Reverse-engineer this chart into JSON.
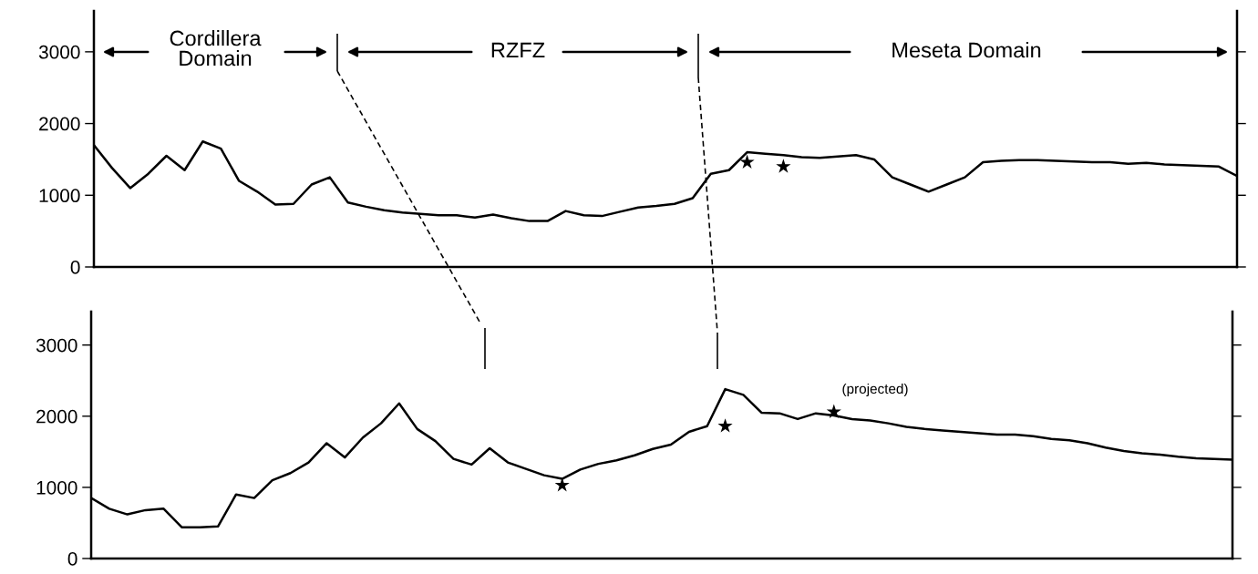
{
  "chart_data": [
    {
      "type": "line",
      "categories": [
        null,
        null,
        null,
        null,
        null,
        null,
        null,
        null,
        null,
        null,
        null,
        null,
        null,
        null,
        null,
        null,
        null,
        null,
        null,
        null,
        null,
        null,
        null,
        null,
        null,
        null,
        null,
        null,
        null,
        null,
        null,
        null,
        null,
        null,
        null,
        null,
        null,
        null,
        null,
        null,
        null,
        null,
        null,
        null,
        null,
        null,
        null,
        null,
        null,
        null,
        null,
        null,
        null,
        null,
        null,
        null,
        null,
        null,
        null,
        null,
        null,
        null,
        null,
        null
      ],
      "ylim": [
        0,
        3570
      ],
      "yticks": [
        0,
        1000,
        2000,
        3000
      ],
      "grid": false,
      "legend": false,
      "series": [
        {
          "color": "#000000",
          "values": [
            1700,
            1380,
            1100,
            1300,
            1550,
            1350,
            1750,
            1650,
            1200,
            1050,
            870,
            880,
            1150,
            1250,
            900,
            840,
            790,
            760,
            740,
            720,
            720,
            690,
            730,
            680,
            640,
            640,
            780,
            720,
            710,
            770,
            830,
            850,
            880,
            960,
            1300,
            1350,
            1600,
            1580,
            1560,
            1530,
            1520,
            1540,
            1560,
            1500,
            1250,
            1150,
            1050,
            1150,
            1250,
            1460,
            1480,
            1490,
            1490,
            1480,
            1470,
            1460,
            1460,
            1440,
            1450,
            1430,
            1420,
            1410,
            1400,
            1270
          ]
        },
        {
          "type": "scatter",
          "marker": "star",
          "color": "#000000",
          "values": [
            null,
            null,
            null,
            null,
            null,
            null,
            null,
            null,
            null,
            null,
            null,
            null,
            null,
            null,
            null,
            null,
            null,
            null,
            null,
            null,
            null,
            null,
            null,
            null,
            null,
            null,
            null,
            null,
            null,
            null,
            null,
            null,
            null,
            null,
            null,
            null,
            1460,
            null,
            1400,
            null,
            null,
            null,
            null,
            null,
            null,
            null,
            null,
            null,
            null,
            null,
            null,
            null,
            null,
            null,
            null,
            null,
            null,
            null,
            null,
            null,
            null,
            null,
            null,
            null
          ]
        }
      ],
      "annotations": [
        "Cordillera\nDomain",
        "RZFZ",
        "Meseta Domain"
      ]
    },
    {
      "type": "line",
      "categories": [
        null,
        null,
        null,
        null,
        null,
        null,
        null,
        null,
        null,
        null,
        null,
        null,
        null,
        null,
        null,
        null,
        null,
        null,
        null,
        null,
        null,
        null,
        null,
        null,
        null,
        null,
        null,
        null,
        null,
        null,
        null,
        null,
        null,
        null,
        null,
        null,
        null,
        null,
        null,
        null,
        null,
        null,
        null,
        null,
        null,
        null,
        null,
        null,
        null,
        null,
        null,
        null,
        null,
        null,
        null,
        null,
        null,
        null,
        null,
        null,
        null,
        null,
        null,
        null
      ],
      "ylim": [
        0,
        3470
      ],
      "yticks": [
        0,
        1000,
        2000,
        3000
      ],
      "grid": false,
      "legend": false,
      "series": [
        {
          "color": "#000000",
          "values": [
            850,
            700,
            620,
            680,
            700,
            440,
            440,
            450,
            900,
            850,
            1100,
            1200,
            1350,
            1620,
            1420,
            1700,
            1900,
            2180,
            1820,
            1650,
            1400,
            1320,
            1550,
            1350,
            1260,
            1170,
            1120,
            1250,
            1330,
            1380,
            1450,
            1540,
            1600,
            1780,
            1860,
            2380,
            2300,
            2050,
            2040,
            1960,
            2040,
            2010,
            1960,
            1940,
            1900,
            1850,
            1820,
            1800,
            1780,
            1760,
            1740,
            1740,
            1720,
            1680,
            1660,
            1620,
            1560,
            1510,
            1480,
            1460,
            1430,
            1410,
            1400,
            1390
          ]
        },
        {
          "type": "scatter",
          "marker": "star",
          "color": "#000000",
          "values": [
            null,
            null,
            null,
            null,
            null,
            null,
            null,
            null,
            null,
            null,
            null,
            null,
            null,
            null,
            null,
            null,
            null,
            null,
            null,
            null,
            null,
            null,
            null,
            null,
            null,
            null,
            1030,
            null,
            null,
            null,
            null,
            null,
            null,
            null,
            null,
            1860,
            null,
            null,
            null,
            null,
            null,
            2060,
            null,
            null,
            null,
            null,
            null,
            null,
            null,
            null,
            null,
            null,
            null,
            null,
            null,
            null,
            null,
            null,
            null,
            null,
            null,
            null,
            null,
            null
          ]
        }
      ],
      "annotations": [
        "(projected)"
      ]
    }
  ]
}
